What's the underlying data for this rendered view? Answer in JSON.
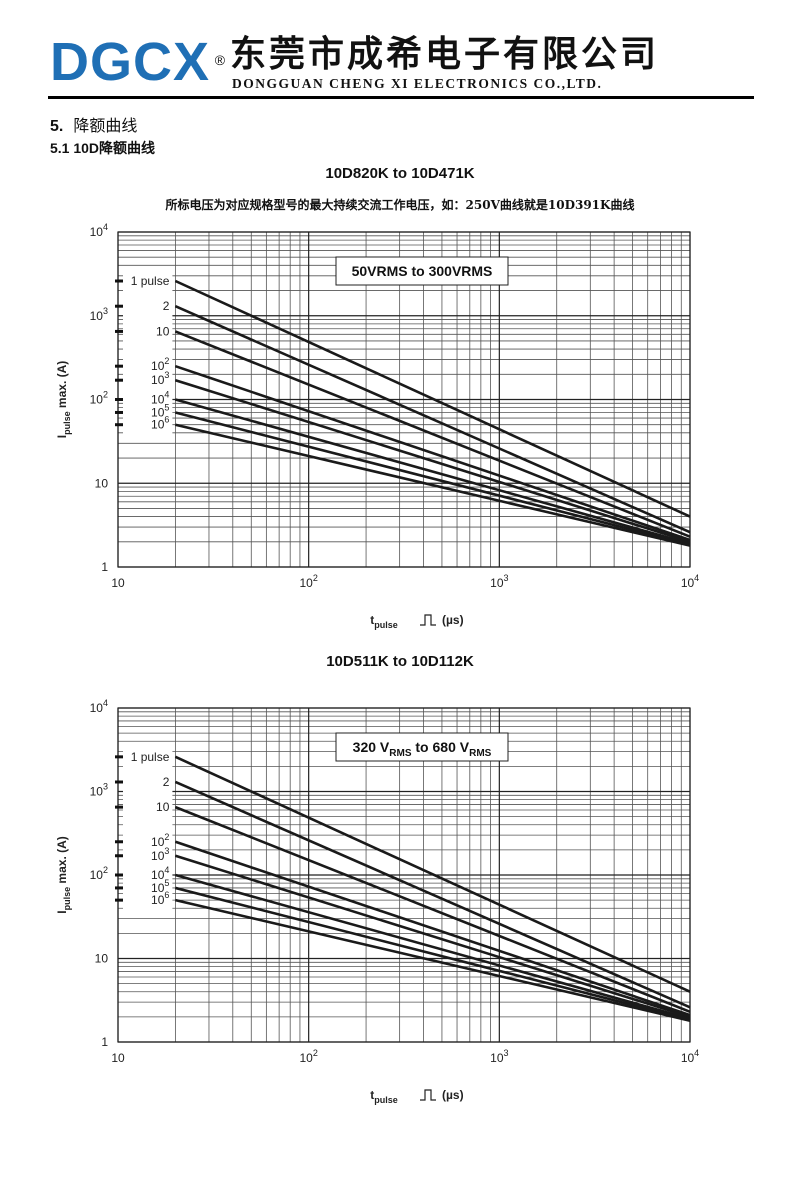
{
  "header": {
    "logo": "DGCX",
    "logo_mark": "®",
    "company_cn": "东莞市成希电子有限公司",
    "company_en": "DONGGUAN CHENG XI ELECTRONICS CO.,LTD."
  },
  "section": {
    "number": "5.",
    "title": "降额曲线"
  },
  "subsection": {
    "number": "5.1",
    "title": "10D降额曲线"
  },
  "colors": {
    "text": "#111111",
    "rule": "#000000",
    "grid": "#555555",
    "curve": "#1a1a1a"
  },
  "chart_data": [
    {
      "type": "line",
      "title": "10D820K  to  10D471K",
      "note": "所标电压为对应规格型号的最大持续交流工作电压，如：250V曲线就是10D391K曲线",
      "range_label": "50VRMS  to 300VRMS",
      "xlabel_main": "t",
      "xlabel_sub": "pulse",
      "xlabel_unit": "(µs)",
      "ylabel_main": "I",
      "ylabel_sub": "pulse",
      "ylabel_rest": " max. (A)",
      "xscale": "log",
      "yscale": "log",
      "xlim": [
        10,
        10000
      ],
      "ylim": [
        1,
        10000
      ],
      "x_ticks": [
        {
          "base": "10",
          "exp": ""
        },
        {
          "base": "10",
          "exp": "2"
        },
        {
          "base": "10",
          "exp": "3"
        },
        {
          "base": "10",
          "exp": "4"
        }
      ],
      "y_ticks": [
        {
          "base": "1",
          "exp": ""
        },
        {
          "base": "10",
          "exp": ""
        },
        {
          "base": "10",
          "exp": "2"
        },
        {
          "base": "10",
          "exp": "3"
        },
        {
          "base": "10",
          "exp": "4"
        }
      ],
      "grid": true,
      "series": [
        {
          "name": "1 pulse",
          "x": [
            20,
            10000
          ],
          "y": [
            2600,
            4
          ]
        },
        {
          "name": "2",
          "x": [
            20,
            10000
          ],
          "y": [
            1300,
            2.6
          ]
        },
        {
          "name": "10",
          "x": [
            20,
            10000
          ],
          "y": [
            650,
            2.3
          ]
        },
        {
          "name": "10^2",
          "x": [
            20,
            10000
          ],
          "y": [
            250,
            2.1
          ]
        },
        {
          "name": "10^3",
          "x": [
            20,
            10000
          ],
          "y": [
            170,
            2.0
          ]
        },
        {
          "name": "10^4",
          "x": [
            20,
            10000
          ],
          "y": [
            100,
            1.9
          ]
        },
        {
          "name": "10^5",
          "x": [
            20,
            10000
          ],
          "y": [
            70,
            1.85
          ]
        },
        {
          "name": "10^6",
          "x": [
            20,
            10000
          ],
          "y": [
            50,
            1.8
          ]
        }
      ]
    },
    {
      "type": "line",
      "title": "10D511K  to 10D112K",
      "range_label_parts": {
        "a": "320 V",
        "a_sub": "RMS",
        "b": " to 680 V",
        "b_sub": "RMS"
      },
      "xlabel_main": "t",
      "xlabel_sub": "pulse",
      "xlabel_unit": "(µs)",
      "ylabel_main": "I",
      "ylabel_sub": "pulse",
      "ylabel_rest": " max. (A)",
      "xscale": "log",
      "yscale": "log",
      "xlim": [
        10,
        10000
      ],
      "ylim": [
        1,
        10000
      ],
      "x_ticks": [
        {
          "base": "10",
          "exp": ""
        },
        {
          "base": "10",
          "exp": "2"
        },
        {
          "base": "10",
          "exp": "3"
        },
        {
          "base": "10",
          "exp": "4"
        }
      ],
      "y_ticks": [
        {
          "base": "1",
          "exp": ""
        },
        {
          "base": "10",
          "exp": ""
        },
        {
          "base": "10",
          "exp": "2"
        },
        {
          "base": "10",
          "exp": "3"
        },
        {
          "base": "10",
          "exp": "4"
        }
      ],
      "grid": true,
      "series": [
        {
          "name": "1 pulse",
          "x": [
            20,
            10000
          ],
          "y": [
            2600,
            4
          ]
        },
        {
          "name": "2",
          "x": [
            20,
            10000
          ],
          "y": [
            1300,
            2.6
          ]
        },
        {
          "name": "10",
          "x": [
            20,
            10000
          ],
          "y": [
            650,
            2.3
          ]
        },
        {
          "name": "10^2",
          "x": [
            20,
            10000
          ],
          "y": [
            250,
            2.1
          ]
        },
        {
          "name": "10^3",
          "x": [
            20,
            10000
          ],
          "y": [
            170,
            2.0
          ]
        },
        {
          "name": "10^4",
          "x": [
            20,
            10000
          ],
          "y": [
            100,
            1.9
          ]
        },
        {
          "name": "10^5",
          "x": [
            20,
            10000
          ],
          "y": [
            70,
            1.85
          ]
        },
        {
          "name": "10^6",
          "x": [
            20,
            10000
          ],
          "y": [
            50,
            1.8
          ]
        }
      ]
    }
  ]
}
